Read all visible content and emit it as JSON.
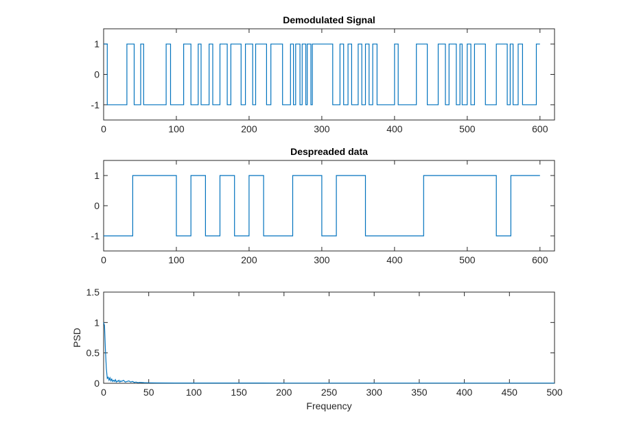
{
  "chart_data": [
    {
      "type": "line",
      "title": "Demodulated Signal",
      "xlabel": "",
      "ylabel": "",
      "xlim": [
        0,
        620
      ],
      "ylim": [
        -1.5,
        1.5
      ],
      "xticks": [
        0,
        100,
        200,
        300,
        400,
        500,
        600
      ],
      "yticks": [
        -1,
        0,
        1
      ],
      "grid": false,
      "color": "#0072BD",
      "series": [
        {
          "step": true,
          "segments": [
            [
              0,
              5,
              1
            ],
            [
              5,
              32,
              -1
            ],
            [
              32,
              42,
              1
            ],
            [
              42,
              51,
              -1
            ],
            [
              51,
              55,
              1
            ],
            [
              55,
              86,
              -1
            ],
            [
              86,
              92,
              1
            ],
            [
              92,
              110,
              -1
            ],
            [
              110,
              120,
              1
            ],
            [
              120,
              130,
              -1
            ],
            [
              130,
              134,
              1
            ],
            [
              134,
              145,
              -1
            ],
            [
              145,
              150,
              1
            ],
            [
              150,
              160,
              -1
            ],
            [
              160,
              170,
              1
            ],
            [
              170,
              175,
              -1
            ],
            [
              175,
              189,
              1
            ],
            [
              189,
              195,
              -1
            ],
            [
              195,
              205,
              1
            ],
            [
              205,
              209,
              -1
            ],
            [
              209,
              224,
              1
            ],
            [
              224,
              230,
              -1
            ],
            [
              230,
              246,
              1
            ],
            [
              246,
              257,
              -1
            ],
            [
              257,
              261,
              1
            ],
            [
              261,
              264,
              -1
            ],
            [
              264,
              270,
              1
            ],
            [
              270,
              273,
              -1
            ],
            [
              273,
              278,
              1
            ],
            [
              278,
              280,
              -1
            ],
            [
              280,
              285,
              1
            ],
            [
              285,
              287,
              -1
            ],
            [
              287,
              315,
              1
            ],
            [
              315,
              325,
              -1
            ],
            [
              325,
              330,
              1
            ],
            [
              330,
              336,
              -1
            ],
            [
              336,
              341,
              1
            ],
            [
              341,
              350,
              -1
            ],
            [
              350,
              355,
              1
            ],
            [
              355,
              360,
              -1
            ],
            [
              360,
              365,
              1
            ],
            [
              365,
              370,
              -1
            ],
            [
              370,
              376,
              1
            ],
            [
              376,
              400,
              -1
            ],
            [
              400,
              405,
              1
            ],
            [
              405,
              430,
              -1
            ],
            [
              430,
              445,
              1
            ],
            [
              445,
              460,
              -1
            ],
            [
              460,
              470,
              1
            ],
            [
              470,
              475,
              -1
            ],
            [
              475,
              485,
              1
            ],
            [
              485,
              490,
              -1
            ],
            [
              490,
              493,
              1
            ],
            [
              493,
              500,
              -1
            ],
            [
              500,
              505,
              1
            ],
            [
              505,
              510,
              -1
            ],
            [
              510,
              525,
              1
            ],
            [
              525,
              540,
              -1
            ],
            [
              540,
              555,
              1
            ],
            [
              555,
              559,
              -1
            ],
            [
              559,
              563,
              1
            ],
            [
              563,
              570,
              -1
            ],
            [
              570,
              576,
              1
            ],
            [
              576,
              595,
              -1
            ],
            [
              595,
              600,
              1
            ]
          ]
        }
      ]
    },
    {
      "type": "line",
      "title": "Despreaded data",
      "xlabel": "",
      "ylabel": "",
      "xlim": [
        0,
        620
      ],
      "ylim": [
        -1.5,
        1.5
      ],
      "xticks": [
        0,
        100,
        200,
        300,
        400,
        500,
        600
      ],
      "yticks": [
        -1,
        0,
        1
      ],
      "grid": false,
      "color": "#0072BD",
      "series": [
        {
          "step": true,
          "segments": [
            [
              0,
              40,
              -1
            ],
            [
              40,
              100,
              1
            ],
            [
              100,
              120,
              -1
            ],
            [
              120,
              140,
              1
            ],
            [
              140,
              160,
              -1
            ],
            [
              160,
              180,
              1
            ],
            [
              180,
              200,
              -1
            ],
            [
              200,
              220,
              1
            ],
            [
              220,
              260,
              -1
            ],
            [
              260,
              300,
              1
            ],
            [
              300,
              320,
              -1
            ],
            [
              320,
              360,
              1
            ],
            [
              360,
              440,
              -1
            ],
            [
              440,
              540,
              1
            ],
            [
              540,
              560,
              -1
            ],
            [
              560,
              600,
              1
            ]
          ]
        }
      ]
    },
    {
      "type": "line",
      "title": "",
      "xlabel": "Frequency",
      "ylabel": "PSD",
      "xlim": [
        0,
        500
      ],
      "ylim": [
        0,
        1.5
      ],
      "xticks": [
        0,
        50,
        100,
        150,
        200,
        250,
        300,
        350,
        400,
        450,
        500
      ],
      "yticks": [
        0,
        0.5,
        1,
        1.5
      ],
      "grid": false,
      "color": "#0072BD",
      "series": [
        {
          "x": [
            0,
            1,
            2,
            3,
            4,
            5,
            6,
            7,
            8,
            9,
            10,
            11,
            12,
            13,
            14,
            15,
            16,
            17,
            18,
            19,
            20,
            22,
            24,
            26,
            28,
            30,
            32,
            34,
            36,
            38,
            40,
            45,
            50,
            60,
            80,
            100,
            150,
            200,
            250,
            300,
            350,
            400,
            450,
            500
          ],
          "y": [
            1.0,
            0.95,
            0.55,
            0.25,
            0.08,
            0.1,
            0.05,
            0.09,
            0.04,
            0.07,
            0.03,
            0.05,
            0.03,
            0.06,
            0.02,
            0.04,
            0.03,
            0.05,
            0.02,
            0.04,
            0.03,
            0.05,
            0.02,
            0.03,
            0.04,
            0.02,
            0.03,
            0.015,
            0.02,
            0.01,
            0.015,
            0.01,
            0.008,
            0.006,
            0.005,
            0.004,
            0.004,
            0.003,
            0.003,
            0.003,
            0.003,
            0.003,
            0.003,
            0.003
          ]
        }
      ]
    }
  ]
}
